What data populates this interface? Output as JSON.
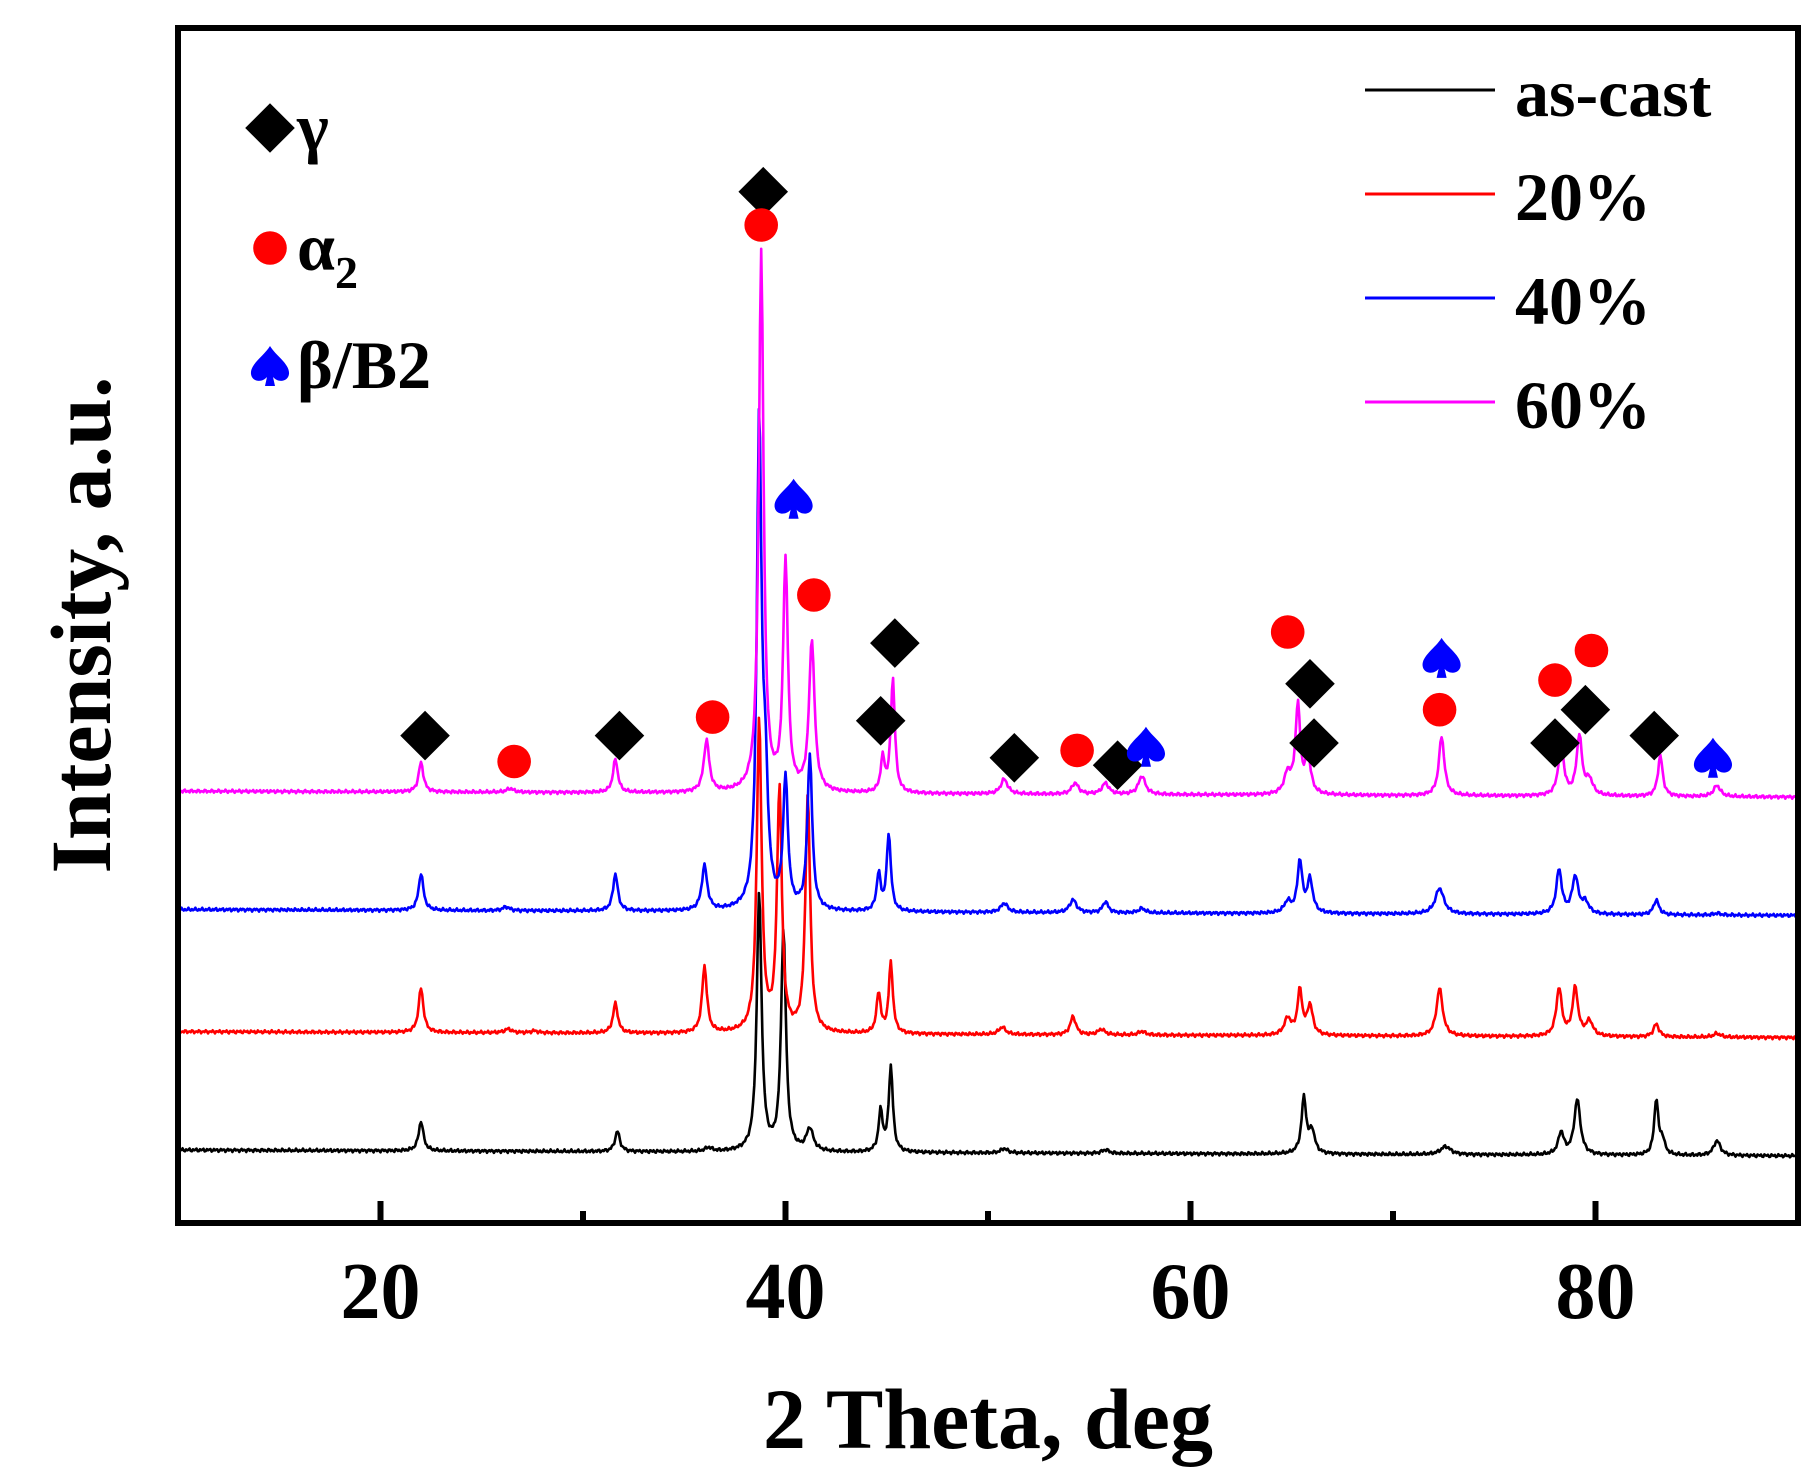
{
  "chart_data": {
    "type": "line",
    "title": "",
    "xlabel": "2 Theta, deg",
    "ylabel": "Intensity, a.u.",
    "xlim": [
      10,
      90
    ],
    "xticks": [
      20,
      40,
      60,
      80
    ],
    "x_minor_ticks": [
      30,
      50,
      70
    ],
    "grid": false,
    "legend_position": "top-right",
    "series": [
      {
        "name": "as-cast",
        "color": "#000000",
        "baseline": 0,
        "peaks": [
          [
            22.0,
            0.8,
            0.14
          ],
          [
            31.7,
            0.55,
            0.14
          ],
          [
            36.2,
            0.1,
            0.2
          ],
          [
            38.7,
            7.0,
            0.14
          ],
          [
            39.9,
            6.0,
            0.14
          ],
          [
            41.2,
            0.6,
            0.2
          ],
          [
            44.7,
            1.1,
            0.12
          ],
          [
            45.2,
            2.3,
            0.12
          ],
          [
            50.8,
            0.12,
            0.2
          ],
          [
            55.8,
            0.1,
            0.2
          ],
          [
            65.6,
            1.5,
            0.14
          ],
          [
            66.0,
            0.6,
            0.16
          ],
          [
            72.6,
            0.22,
            0.3
          ],
          [
            78.3,
            0.6,
            0.16
          ],
          [
            79.1,
            1.5,
            0.18
          ],
          [
            83.0,
            1.5,
            0.12
          ],
          [
            83.3,
            0.4,
            0.14
          ],
          [
            86.0,
            0.4,
            0.2
          ]
        ]
      },
      {
        "name": "20%",
        "color": "#ff0000",
        "baseline": 3.2,
        "peaks": [
          [
            22.0,
            1.2,
            0.14
          ],
          [
            26.3,
            0.1,
            0.2
          ],
          [
            27.6,
            0.05,
            0.2
          ],
          [
            31.6,
            0.8,
            0.14
          ],
          [
            36.0,
            1.8,
            0.14
          ],
          [
            38.7,
            8.5,
            0.14
          ],
          [
            39.7,
            6.6,
            0.14
          ],
          [
            41.1,
            6.4,
            0.14
          ],
          [
            44.6,
            1.1,
            0.12
          ],
          [
            45.2,
            1.9,
            0.12
          ],
          [
            50.7,
            0.2,
            0.2
          ],
          [
            54.2,
            0.5,
            0.16
          ],
          [
            55.6,
            0.15,
            0.2
          ],
          [
            57.6,
            0.1,
            0.2
          ],
          [
            64.8,
            0.45,
            0.2
          ],
          [
            65.4,
            1.2,
            0.14
          ],
          [
            65.9,
            0.8,
            0.16
          ],
          [
            72.3,
            1.3,
            0.18
          ],
          [
            78.2,
            1.3,
            0.16
          ],
          [
            79.0,
            1.3,
            0.16
          ],
          [
            79.7,
            0.4,
            0.2
          ],
          [
            83.0,
            0.35,
            0.16
          ],
          [
            86.0,
            0.1,
            0.2
          ]
        ]
      },
      {
        "name": "40%",
        "color": "#0000ff",
        "baseline": 6.5,
        "peaks": [
          [
            22.0,
            1.0,
            0.14
          ],
          [
            26.2,
            0.1,
            0.2
          ],
          [
            31.6,
            1.0,
            0.14
          ],
          [
            36.0,
            1.2,
            0.16
          ],
          [
            38.7,
            13.0,
            0.14
          ],
          [
            39.0,
            3.0,
            0.16
          ],
          [
            40.0,
            3.5,
            0.14
          ],
          [
            41.2,
            4.2,
            0.14
          ],
          [
            44.6,
            1.0,
            0.12
          ],
          [
            45.1,
            2.1,
            0.12
          ],
          [
            50.8,
            0.25,
            0.2
          ],
          [
            54.2,
            0.35,
            0.2
          ],
          [
            55.8,
            0.3,
            0.16
          ],
          [
            57.6,
            0.12,
            0.2
          ],
          [
            64.8,
            0.3,
            0.2
          ],
          [
            65.4,
            1.4,
            0.14
          ],
          [
            65.9,
            0.9,
            0.16
          ],
          [
            72.3,
            0.7,
            0.25
          ],
          [
            78.2,
            1.2,
            0.16
          ],
          [
            79.0,
            1.0,
            0.18
          ],
          [
            79.5,
            0.3,
            0.2
          ],
          [
            83.0,
            0.4,
            0.16
          ],
          [
            86.0,
            0.05,
            0.2
          ]
        ]
      },
      {
        "name": "60%",
        "color": "#ff00ff",
        "baseline": 9.7,
        "peaks": [
          [
            22.0,
            0.8,
            0.14
          ],
          [
            26.4,
            0.1,
            0.2
          ],
          [
            31.6,
            0.9,
            0.14
          ],
          [
            36.1,
            1.4,
            0.16
          ],
          [
            38.8,
            14.6,
            0.14
          ],
          [
            40.0,
            6.2,
            0.14
          ],
          [
            41.3,
            4.1,
            0.16
          ],
          [
            44.8,
            0.9,
            0.12
          ],
          [
            45.3,
            3.1,
            0.12
          ],
          [
            50.8,
            0.4,
            0.2
          ],
          [
            54.3,
            0.3,
            0.2
          ],
          [
            55.8,
            0.3,
            0.2
          ],
          [
            57.6,
            0.5,
            0.2
          ],
          [
            64.8,
            0.55,
            0.2
          ],
          [
            65.3,
            2.4,
            0.14
          ],
          [
            65.8,
            1.0,
            0.16
          ],
          [
            72.4,
            1.6,
            0.16
          ],
          [
            78.3,
            1.4,
            0.16
          ],
          [
            79.2,
            1.6,
            0.16
          ],
          [
            79.7,
            0.4,
            0.2
          ],
          [
            83.2,
            1.1,
            0.14
          ],
          [
            86.0,
            0.3,
            0.2
          ]
        ]
      }
    ],
    "phase_legend": [
      {
        "symbol": "diamond",
        "color": "#000000",
        "label": "γ",
        "subscript": ""
      },
      {
        "symbol": "circle",
        "color": "#ff0000",
        "label": "α",
        "subscript": "2"
      },
      {
        "symbol": "spade",
        "color": "#0000ff",
        "label": "β/B2",
        "subscript": ""
      }
    ],
    "phase_markers": [
      {
        "symbol": "diamond",
        "x": 22.2,
        "intensity": 11.2
      },
      {
        "symbol": "diamond",
        "x": 31.8,
        "intensity": 11.2
      },
      {
        "symbol": "diamond",
        "x": 38.9,
        "intensity": 25.9
      },
      {
        "symbol": "diamond",
        "x": 45.4,
        "intensity": 13.7
      },
      {
        "symbol": "diamond",
        "x": 44.7,
        "intensity": 11.6
      },
      {
        "symbol": "diamond",
        "x": 51.3,
        "intensity": 10.6
      },
      {
        "symbol": "diamond",
        "x": 56.4,
        "intensity": 10.4
      },
      {
        "symbol": "diamond",
        "x": 65.9,
        "intensity": 12.6
      },
      {
        "symbol": "diamond",
        "x": 66.1,
        "intensity": 11.0
      },
      {
        "symbol": "diamond",
        "x": 79.5,
        "intensity": 11.9
      },
      {
        "symbol": "diamond",
        "x": 78.0,
        "intensity": 11.0
      },
      {
        "symbol": "diamond",
        "x": 82.9,
        "intensity": 11.2
      },
      {
        "symbol": "circle",
        "x": 38.8,
        "intensity": 25.0
      },
      {
        "symbol": "circle",
        "x": 26.6,
        "intensity": 10.5
      },
      {
        "symbol": "circle",
        "x": 36.4,
        "intensity": 11.7
      },
      {
        "symbol": "circle",
        "x": 41.4,
        "intensity": 15.0
      },
      {
        "symbol": "circle",
        "x": 54.4,
        "intensity": 10.8
      },
      {
        "symbol": "circle",
        "x": 64.8,
        "intensity": 14.0
      },
      {
        "symbol": "circle",
        "x": 72.3,
        "intensity": 11.9
      },
      {
        "symbol": "circle",
        "x": 78.0,
        "intensity": 12.7
      },
      {
        "symbol": "circle",
        "x": 79.8,
        "intensity": 13.5
      },
      {
        "symbol": "spade",
        "x": 40.4,
        "intensity": 17.6
      },
      {
        "symbol": "spade",
        "x": 57.8,
        "intensity": 10.9
      },
      {
        "symbol": "spade",
        "x": 72.4,
        "intensity": 13.3
      },
      {
        "symbol": "spade",
        "x": 85.8,
        "intensity": 10.6
      }
    ]
  }
}
